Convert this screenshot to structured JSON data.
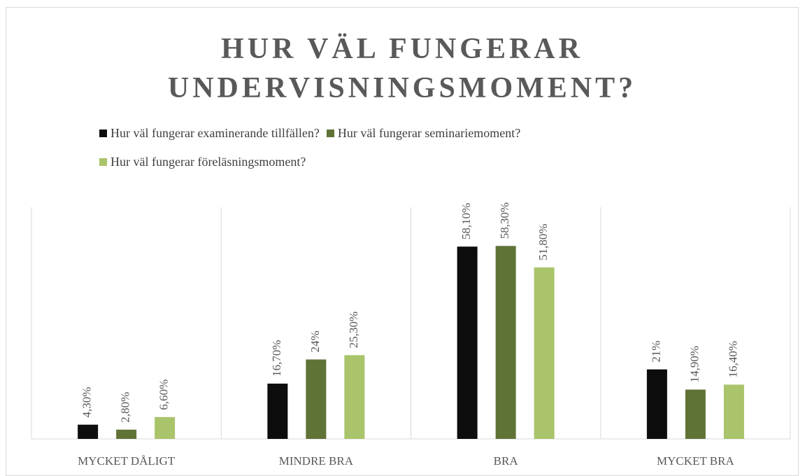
{
  "chart_data": {
    "type": "bar",
    "title": "HUR VÄL FUNGERAR UNDERVISNINGSMOMENT?",
    "categories": [
      "MYCKET DÅLIGT",
      "MINDRE BRA",
      "BRA",
      "MYCKET BRA"
    ],
    "series": [
      {
        "name": "Hur väl fungerar examinerande tillfällen?",
        "color": "#0d0d0d",
        "values": [
          4.3,
          16.7,
          58.1,
          21
        ],
        "value_labels": [
          "4,30%",
          "16,70%",
          "58,10%",
          "21%"
        ]
      },
      {
        "name": "Hur väl fungerar seminariemoment?",
        "color": "#5f7336",
        "values": [
          2.8,
          24,
          58.3,
          14.9
        ],
        "value_labels": [
          "2,80%",
          "24%",
          "58,30%",
          "14,90%"
        ]
      },
      {
        "name": "Hur väl fungerar föreläsningsmoment?",
        "color": "#a9c46a",
        "values": [
          6.6,
          25.3,
          51.8,
          16.4
        ],
        "value_labels": [
          "6,60%",
          "25,30%",
          "51,80%",
          "16,40%"
        ]
      }
    ],
    "ylim": [
      0,
      70
    ],
    "legend": "top"
  }
}
